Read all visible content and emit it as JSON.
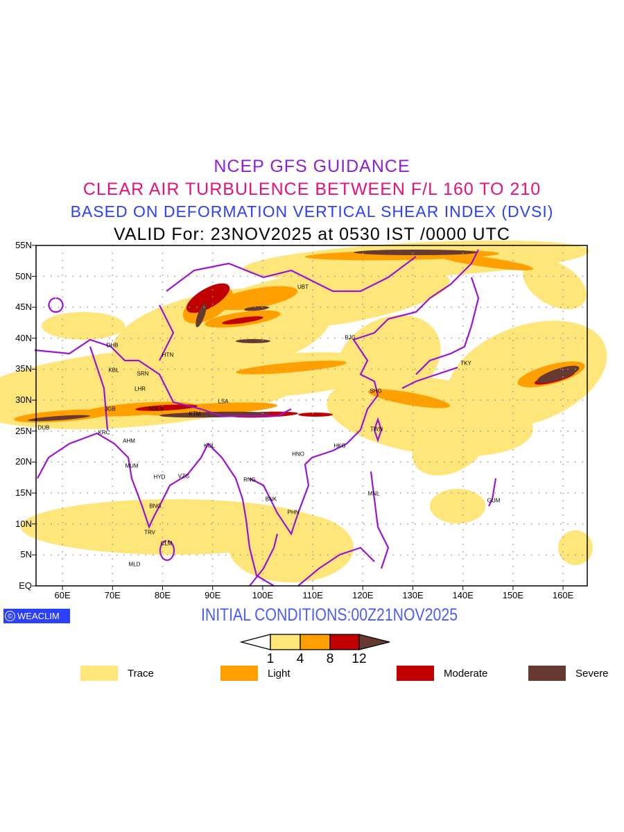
{
  "titles": {
    "line1": "NCEP GFS GUIDANCE",
    "line2": "CLEAR AIR TURBULENCE BETWEEN F/L 160 TO 210",
    "line3": "BASED ON DEFORMATION VERTICAL SHEAR INDEX (DVSI)",
    "line4": "VALID For: 23NOV2025 at 0530 IST /0000 UTC"
  },
  "axes": {
    "lat_labels": [
      "55N",
      "50N",
      "45N",
      "40N",
      "35N",
      "30N",
      "25N",
      "20N",
      "15N",
      "10N",
      "5N",
      "EQ"
    ],
    "lon_labels": [
      "60E",
      "70E",
      "80E",
      "90E",
      "100E",
      "110E",
      "120E",
      "130E",
      "140E",
      "150E",
      "160E"
    ]
  },
  "cities": [
    "DHB",
    "KBL",
    "SRN",
    "HTN",
    "LHR",
    "JGB",
    "NDLS",
    "KTM",
    "LSA",
    "DUB",
    "KRC",
    "AHM",
    "KOL",
    "MUM",
    "HYD",
    "VZG",
    "BNG",
    "TRV",
    "CLM",
    "MLD",
    "UBT",
    "BJG",
    "SHG",
    "TWN",
    "HKG",
    "HNO",
    "RNG",
    "BNK",
    "PHN",
    "MNL",
    "GUM",
    "TKY"
  ],
  "branding": {
    "logo": "WEACLIM",
    "copyright_symbol": "©"
  },
  "initial_conditions": "INITIAL CONDITIONS:00Z21NOV2025",
  "colorbar": {
    "thresholds": [
      "1",
      "4",
      "8",
      "12"
    ],
    "colors": [
      "#ffe67a",
      "#ffa000",
      "#c00000",
      "#663a30"
    ]
  },
  "legend": [
    {
      "label": "Trace",
      "color": "#ffe67a"
    },
    {
      "label": "Light",
      "color": "#ffa000"
    },
    {
      "label": "Moderate",
      "color": "#c00000"
    },
    {
      "label": "Severe",
      "color": "#663a30"
    }
  ],
  "colors": {
    "coastline": "#9a14d0",
    "grid": "#999999"
  }
}
